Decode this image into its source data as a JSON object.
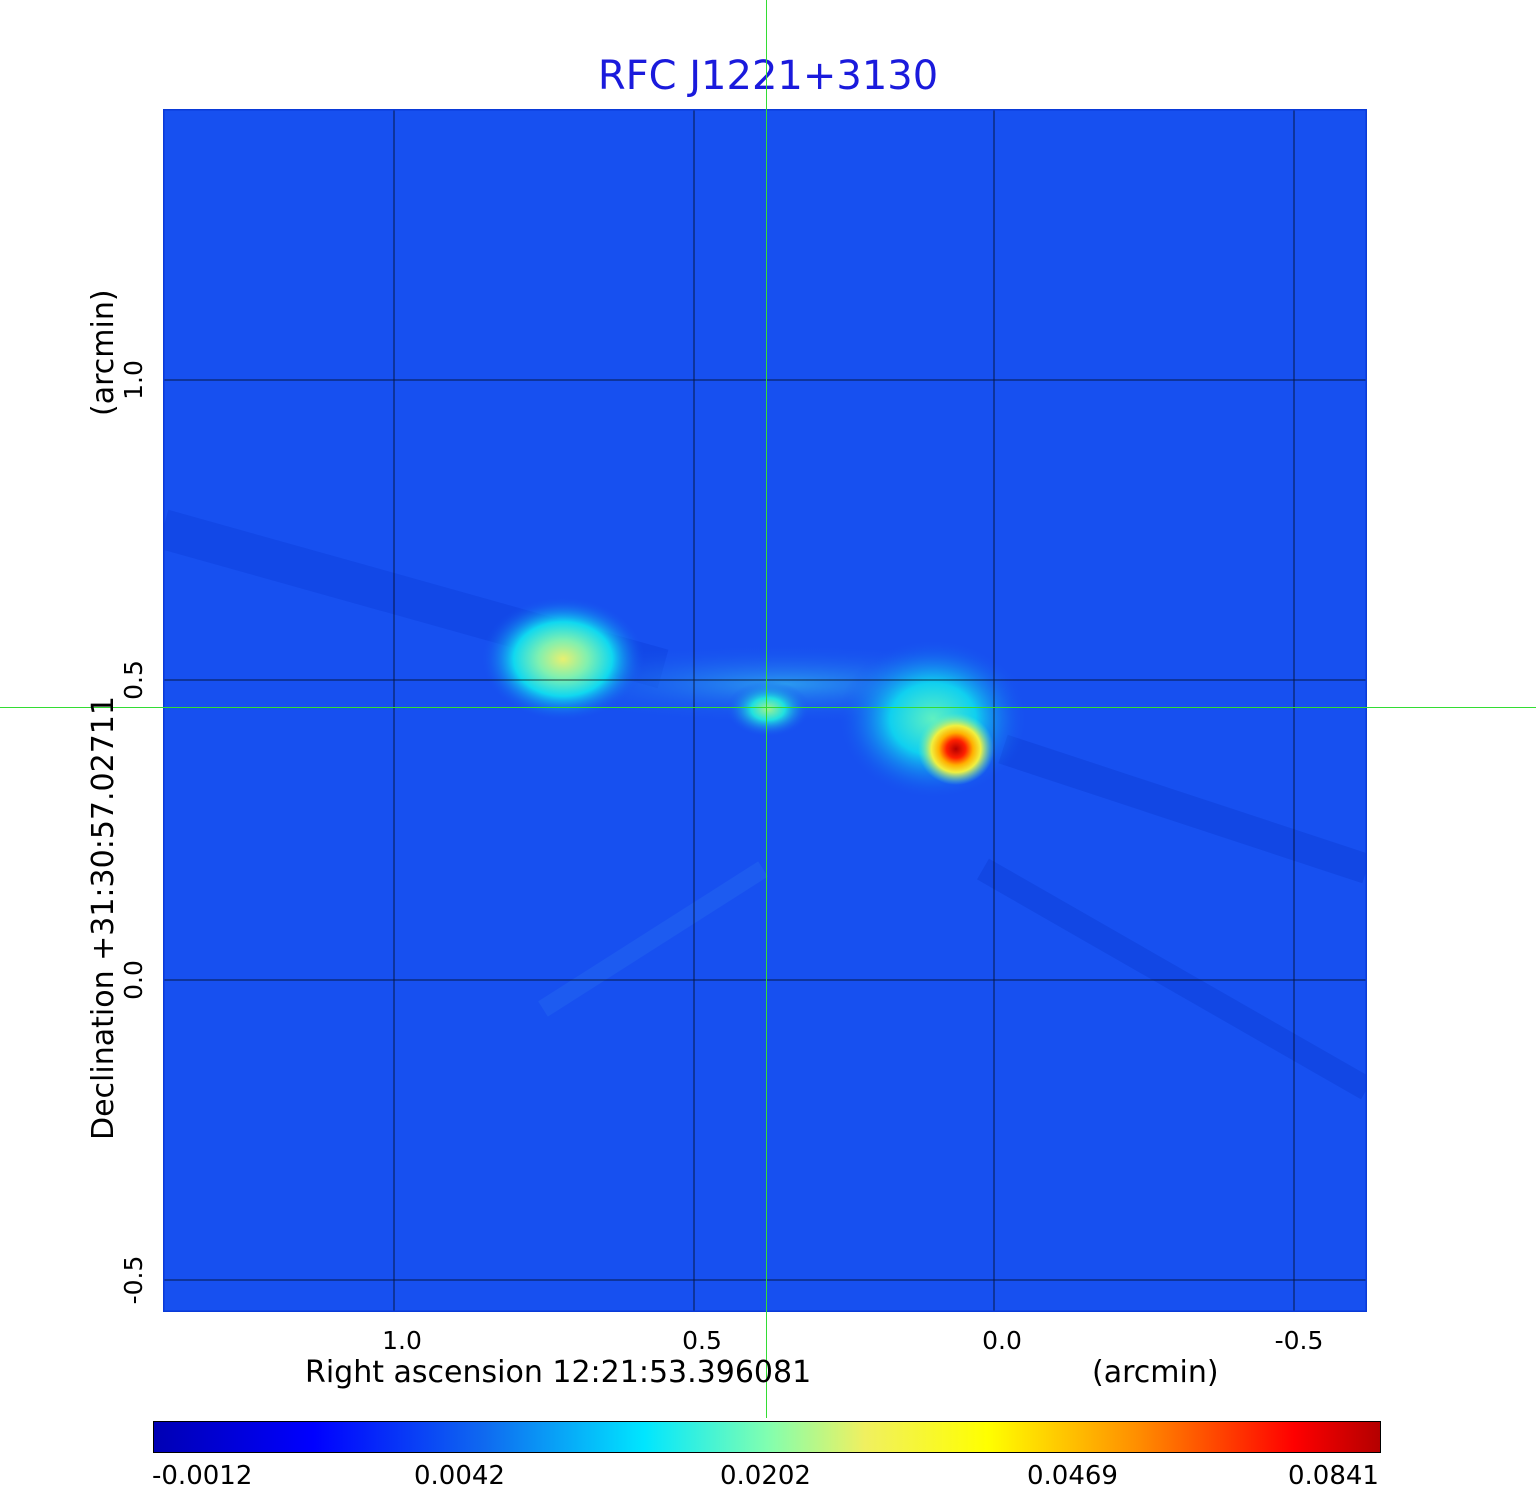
{
  "title": "RFC J1221+3130",
  "x_axis": {
    "label": "Right ascension  12:21:53.396081",
    "unit": "(arcmin)",
    "ticks": [
      "1.0",
      "0.5",
      "0.0",
      "-0.5"
    ]
  },
  "y_axis": {
    "label": "Declination  +31:30:57.02711",
    "unit": "(arcmin)",
    "ticks": [
      "1.0",
      "0.5",
      "0.0",
      "-0.5"
    ]
  },
  "colorbar": {
    "ticks": [
      "-0.0012",
      "0.0042",
      "0.0202",
      "0.0469",
      "0.0841"
    ],
    "colormap": "jet"
  },
  "colors": {
    "background_map": "#1750f0",
    "grid": "#000000",
    "crosshair": "#33dd33",
    "title": "#1a1adc"
  }
}
